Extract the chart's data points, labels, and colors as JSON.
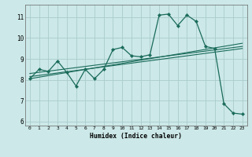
{
  "title": "",
  "xlabel": "Humidex (Indice chaleur)",
  "bg_color": "#cce8e8",
  "grid_color": "#aacccc",
  "line_color": "#1a6b5a",
  "xlim": [
    -0.5,
    23.5
  ],
  "ylim": [
    5.8,
    11.6
  ],
  "xticks": [
    0,
    1,
    2,
    3,
    4,
    5,
    6,
    7,
    8,
    9,
    10,
    11,
    12,
    13,
    14,
    15,
    16,
    17,
    18,
    19,
    20,
    21,
    22,
    23
  ],
  "yticks": [
    6,
    7,
    8,
    9,
    10,
    11
  ],
  "main_x": [
    0,
    1,
    2,
    3,
    4,
    5,
    6,
    7,
    8,
    9,
    10,
    11,
    12,
    13,
    14,
    15,
    16,
    17,
    18,
    19,
    20,
    21,
    22,
    23
  ],
  "main_y": [
    8.05,
    8.5,
    8.4,
    8.9,
    8.35,
    7.7,
    8.5,
    8.05,
    8.5,
    9.45,
    9.55,
    9.15,
    9.1,
    9.2,
    11.1,
    11.15,
    10.6,
    11.1,
    10.8,
    9.6,
    9.5,
    6.85,
    6.4,
    6.35
  ],
  "trend1_x": [
    0,
    23
  ],
  "trend1_y": [
    8.15,
    9.5
  ],
  "trend2_x": [
    0,
    23
  ],
  "trend2_y": [
    8.3,
    9.6
  ],
  "trend3_x": [
    0,
    23
  ],
  "trend3_y": [
    8.05,
    9.75
  ]
}
